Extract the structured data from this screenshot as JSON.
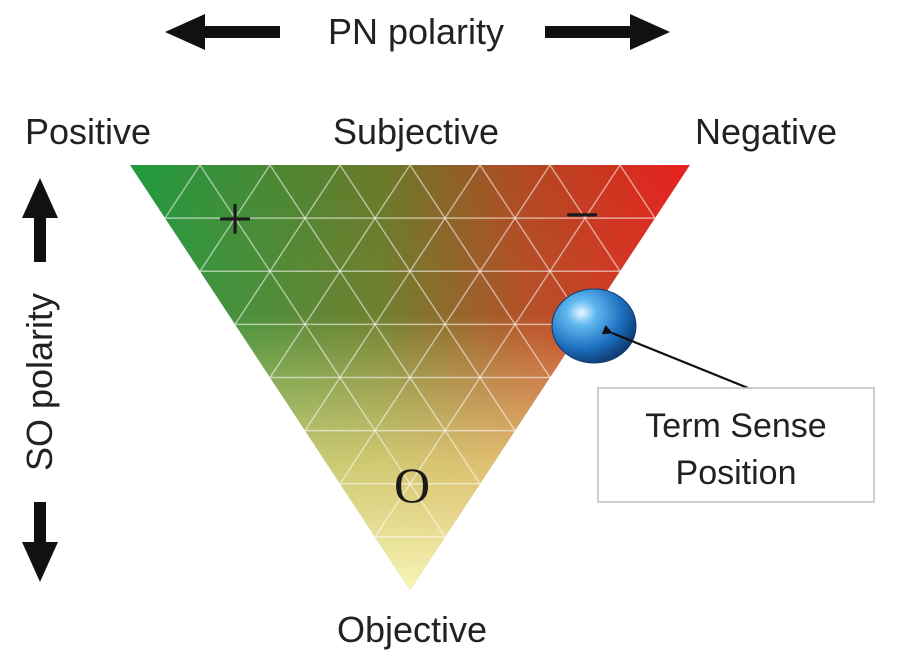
{
  "axes": {
    "pn_label": "PN polarity",
    "so_label": "SO polarity"
  },
  "corners": {
    "positive": "Positive",
    "subjective": "Subjective",
    "negative": "Negative",
    "objective": "Objective"
  },
  "marks": {
    "plus": "+",
    "minus": "−",
    "objective": "O"
  },
  "callout": {
    "line1": "Term Sense",
    "line2": "Position"
  },
  "colors": {
    "positive": "#1f9a40",
    "negative": "#e8201e",
    "objective": "#f7f1a0",
    "ball": "#2b7fcf",
    "text": "#222222"
  }
}
